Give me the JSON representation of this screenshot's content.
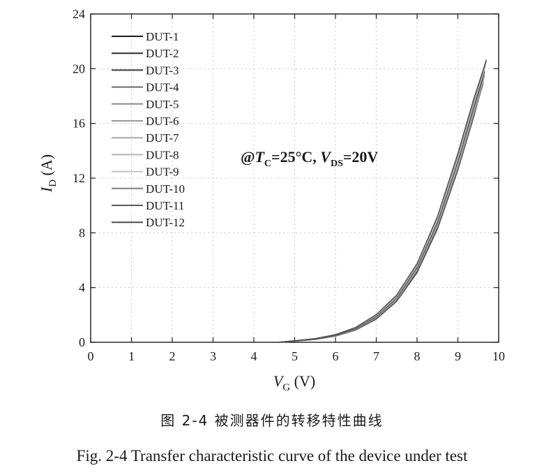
{
  "chart_data": {
    "type": "line",
    "xlabel": {
      "symbol": "V",
      "sub": "G",
      "unit": "(V)"
    },
    "ylabel": {
      "symbol": "I",
      "sub": "D",
      "unit": "(A)"
    },
    "xlim": [
      0,
      10
    ],
    "ylim": [
      0,
      24
    ],
    "xticks": [
      0,
      1,
      2,
      3,
      4,
      5,
      6,
      7,
      8,
      9,
      10
    ],
    "yticks": [
      0,
      4,
      8,
      12,
      16,
      20,
      24
    ],
    "grid": true,
    "legend_position": "top-left",
    "annotation": {
      "prefix": "@",
      "t": "T",
      "t_sub": "C",
      "t_val": "=25°C, ",
      "v": "V",
      "v_sub": "DS",
      "v_val": "=20V"
    },
    "series": [
      {
        "name": "DUT-1",
        "color": "#1a1a1a",
        "x": [
          4.6,
          5.0,
          5.5,
          6.0,
          6.5,
          7.0,
          7.5,
          8.0,
          8.5,
          9.0,
          9.4,
          9.6
        ],
        "y": [
          0,
          0.08,
          0.2,
          0.45,
          0.9,
          1.7,
          3.0,
          5.1,
          8.3,
          12.6,
          16.6,
          18.8
        ]
      },
      {
        "name": "DUT-2",
        "color": "#2c2c2c",
        "x": [
          4.6,
          5.0,
          5.5,
          6.0,
          6.5,
          7.0,
          7.5,
          8.0,
          8.5,
          9.0,
          9.4,
          9.62
        ],
        "y": [
          0,
          0.09,
          0.22,
          0.48,
          0.95,
          1.8,
          3.1,
          5.3,
          8.5,
          12.9,
          16.9,
          19.2
        ]
      },
      {
        "name": "DUT-3",
        "color": "#3a3a3a",
        "x": [
          4.6,
          5.0,
          5.5,
          6.0,
          6.5,
          7.0,
          7.5,
          8.0,
          8.5,
          9.0,
          9.4,
          9.64
        ],
        "y": [
          0,
          0.1,
          0.24,
          0.5,
          1.0,
          1.85,
          3.2,
          5.4,
          8.7,
          13.1,
          17.2,
          19.6
        ]
      },
      {
        "name": "DUT-4",
        "color": "#6a6a6a",
        "x": [
          4.6,
          5.0,
          5.5,
          6.0,
          6.5,
          7.0,
          7.5,
          8.0,
          8.5,
          9.0,
          9.4,
          9.66
        ],
        "y": [
          0,
          0.1,
          0.25,
          0.52,
          1.02,
          1.9,
          3.25,
          5.5,
          8.8,
          13.3,
          17.4,
          20.0
        ]
      },
      {
        "name": "DUT-5",
        "color": "#8a8a8a",
        "x": [
          4.6,
          5.0,
          5.5,
          6.0,
          6.5,
          7.0,
          7.5,
          8.0,
          8.5,
          9.0,
          9.4,
          9.68
        ],
        "y": [
          0,
          0.11,
          0.26,
          0.54,
          1.05,
          1.95,
          3.35,
          5.6,
          9.0,
          13.5,
          17.6,
          20.4
        ]
      },
      {
        "name": "DUT-6",
        "color": "#9a9a9a",
        "x": [
          4.6,
          5.0,
          5.5,
          6.0,
          6.5,
          7.0,
          7.5,
          8.0,
          8.5,
          9.0,
          9.4,
          9.7
        ],
        "y": [
          0,
          0.11,
          0.27,
          0.55,
          1.08,
          2.0,
          3.4,
          5.7,
          9.1,
          13.7,
          17.8,
          20.7
        ]
      },
      {
        "name": "DUT-7",
        "color": "#a8a8a8",
        "x": [
          4.6,
          5.0,
          5.5,
          6.0,
          6.5,
          7.0,
          7.5,
          8.0,
          8.5,
          9.0,
          9.4,
          9.66
        ],
        "y": [
          0,
          0.1,
          0.24,
          0.5,
          0.98,
          1.82,
          3.15,
          5.35,
          8.6,
          13.0,
          17.0,
          19.5
        ]
      },
      {
        "name": "DUT-8",
        "color": "#b4b4b4",
        "x": [
          4.6,
          5.0,
          5.5,
          6.0,
          6.5,
          7.0,
          7.5,
          8.0,
          8.5,
          9.0,
          9.4,
          9.64
        ],
        "y": [
          0,
          0.09,
          0.23,
          0.49,
          0.96,
          1.78,
          3.1,
          5.25,
          8.45,
          12.8,
          16.8,
          19.1
        ]
      },
      {
        "name": "DUT-9",
        "color": "#c2c2c2",
        "x": [
          4.6,
          5.0,
          5.5,
          6.0,
          6.5,
          7.0,
          7.5,
          8.0,
          8.5,
          9.0,
          9.4,
          9.68
        ],
        "y": [
          0,
          0.11,
          0.26,
          0.53,
          1.04,
          1.93,
          3.3,
          5.55,
          8.95,
          13.4,
          17.5,
          20.2
        ]
      },
      {
        "name": "DUT-10",
        "color": "#7c7c7c",
        "x": [
          4.6,
          5.0,
          5.5,
          6.0,
          6.5,
          7.0,
          7.5,
          8.0,
          8.5,
          9.0,
          9.4,
          9.62
        ],
        "y": [
          0,
          0.08,
          0.21,
          0.46,
          0.92,
          1.74,
          3.05,
          5.2,
          8.4,
          12.7,
          16.7,
          18.9
        ]
      },
      {
        "name": "DUT-11",
        "color": "#5a5a5a",
        "x": [
          4.6,
          5.0,
          5.5,
          6.0,
          6.5,
          7.0,
          7.5,
          8.0,
          8.5,
          9.0,
          9.4,
          9.66
        ],
        "y": [
          0,
          0.1,
          0.25,
          0.51,
          1.0,
          1.87,
          3.22,
          5.45,
          8.75,
          13.2,
          17.3,
          19.8
        ]
      },
      {
        "name": "DUT-12",
        "color": "#4a4a4a",
        "x": [
          4.6,
          5.0,
          5.5,
          6.0,
          6.5,
          7.0,
          7.5,
          8.0,
          8.5,
          9.0,
          9.4,
          9.7
        ],
        "y": [
          0,
          0.11,
          0.27,
          0.56,
          1.1,
          2.02,
          3.45,
          5.75,
          9.2,
          13.8,
          17.9,
          20.6
        ]
      }
    ]
  },
  "caption": {
    "cn": "图 2-4 被测器件的转移特性曲线",
    "en": "Fig. 2-4 Transfer characteristic curve of the device under test"
  }
}
